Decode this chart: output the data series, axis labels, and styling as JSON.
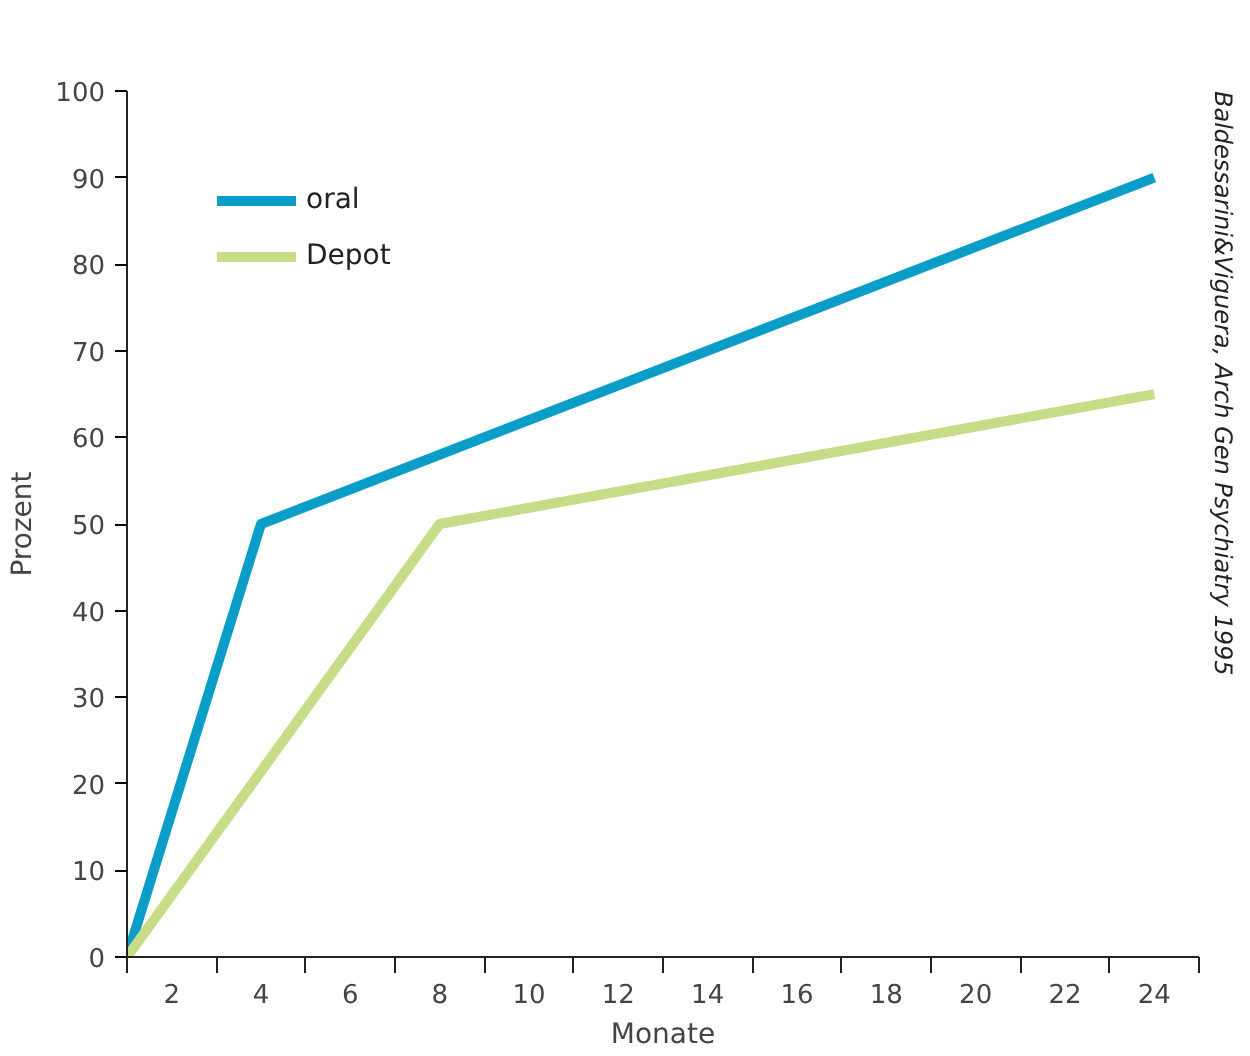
{
  "chart_data": {
    "type": "line",
    "xlabel": "Monate",
    "ylabel": "Prozent",
    "series": [
      {
        "name": "oral",
        "color": "#0a9dc8",
        "x": [
          1,
          4,
          24
        ],
        "values": [
          0,
          50,
          90
        ]
      },
      {
        "name": "Depot",
        "color": "#c6dc86",
        "x": [
          1,
          8,
          24
        ],
        "values": [
          0,
          50,
          65
        ]
      }
    ],
    "xlim": [
      1,
      25
    ],
    "xticks": [
      {
        "value": 1,
        "label": null
      },
      2,
      {
        "value": 3,
        "label": null
      },
      4,
      {
        "value": 5,
        "label": null
      },
      6,
      {
        "value": 7,
        "label": null
      },
      8,
      {
        "value": 9,
        "label": null
      },
      10,
      {
        "value": 11,
        "label": null
      },
      12,
      {
        "value": 13,
        "label": null
      },
      14,
      {
        "value": 15,
        "label": null
      },
      16,
      {
        "value": 17,
        "label": null
      },
      18,
      {
        "value": 19,
        "label": null
      },
      20,
      {
        "value": 21,
        "label": null
      },
      22,
      {
        "value": 23,
        "label": null
      },
      24,
      {
        "value": 25,
        "label": null
      }
    ],
    "ylim": [
      0,
      100
    ],
    "yticks": [
      0,
      10,
      20,
      30,
      40,
      50,
      60,
      70,
      80,
      90,
      100
    ],
    "grid": false,
    "legend": "top left",
    "marker": "none",
    "line_style": "solid",
    "annotations": [
      "Baldessarini&Viguera, Arch Gen Psychiatry 1995"
    ]
  }
}
